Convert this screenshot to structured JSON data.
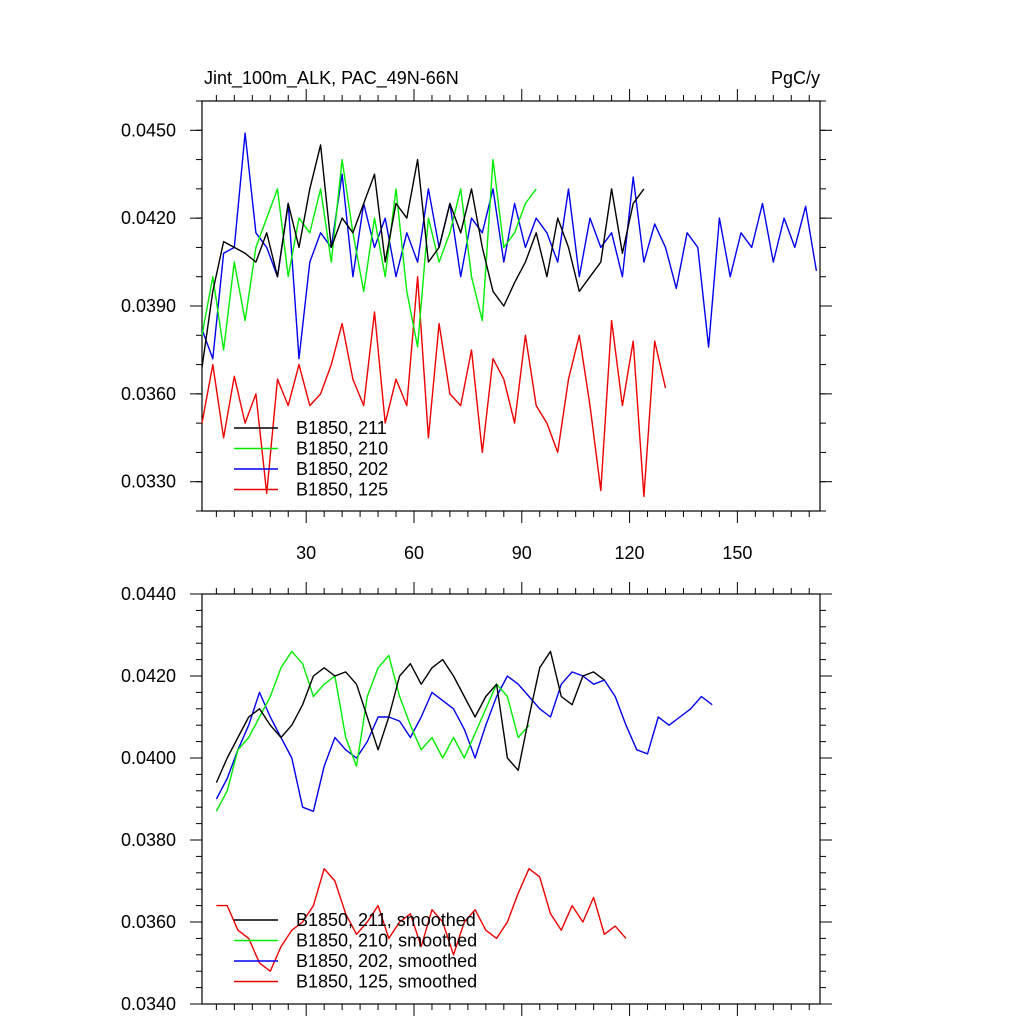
{
  "chart_data": [
    {
      "type": "line",
      "title_left": "Jint_100m_ALK, PAC_49N-66N",
      "title_right": "PgC/y",
      "xlim": [
        1,
        173
      ],
      "ylim": [
        0.032,
        0.046
      ],
      "xticks": [
        30,
        60,
        90,
        120,
        150
      ],
      "xticklabels": [
        "30",
        "60",
        "90",
        "120",
        "150"
      ],
      "yticks": [
        0.033,
        0.036,
        0.039,
        0.042,
        0.045
      ],
      "yticklabels": [
        "0.0330",
        "0.0360",
        "0.0390",
        "0.0420",
        "0.0450"
      ],
      "legend_position": "lower-left",
      "series": [
        {
          "name": "B1850, 211",
          "color": "#000000",
          "x_start": 1,
          "x_step": 3,
          "values": [
            0.0369,
            0.0395,
            0.0412,
            0.041,
            0.0408,
            0.0405,
            0.0415,
            0.04,
            0.0425,
            0.041,
            0.043,
            0.0445,
            0.041,
            0.042,
            0.0415,
            0.0425,
            0.0435,
            0.0405,
            0.0425,
            0.042,
            0.044,
            0.0405,
            0.041,
            0.0425,
            0.0415,
            0.043,
            0.041,
            0.0395,
            0.039,
            0.0398,
            0.0405,
            0.0415,
            0.04,
            0.042,
            0.041,
            0.0395,
            0.04,
            0.0405,
            0.043,
            0.0408,
            0.0425,
            0.043
          ]
        },
        {
          "name": "B1850, 210",
          "color": "#00ee00",
          "x_start": 1,
          "x_step": 3,
          "values": [
            0.038,
            0.04,
            0.0375,
            0.0405,
            0.0385,
            0.041,
            0.042,
            0.043,
            0.04,
            0.042,
            0.0415,
            0.043,
            0.0405,
            0.044,
            0.0415,
            0.0395,
            0.042,
            0.04,
            0.043,
            0.0395,
            0.0376,
            0.042,
            0.0405,
            0.0415,
            0.043,
            0.04,
            0.0385,
            0.044,
            0.041,
            0.0415,
            0.0425,
            0.043
          ]
        },
        {
          "name": "B1850, 202",
          "color": "#0000ee",
          "x_start": 1,
          "x_step": 3,
          "values": [
            0.0382,
            0.0372,
            0.0408,
            0.041,
            0.0449,
            0.0415,
            0.041,
            0.04,
            0.0425,
            0.0372,
            0.0405,
            0.0415,
            0.041,
            0.0435,
            0.04,
            0.0425,
            0.041,
            0.042,
            0.04,
            0.0415,
            0.0405,
            0.043,
            0.041,
            0.0425,
            0.04,
            0.042,
            0.0415,
            0.043,
            0.0405,
            0.0425,
            0.041,
            0.042,
            0.0415,
            0.0405,
            0.043,
            0.04,
            0.042,
            0.041,
            0.0415,
            0.04,
            0.0434,
            0.0405,
            0.0418,
            0.041,
            0.0396,
            0.0415,
            0.041,
            0.0376,
            0.042,
            0.04,
            0.0415,
            0.041,
            0.0425,
            0.0405,
            0.042,
            0.041,
            0.0424,
            0.0402
          ]
        },
        {
          "name": "B1850, 125",
          "color": "#ee0000",
          "x_start": 1,
          "x_step": 3,
          "values": [
            0.035,
            0.037,
            0.0345,
            0.0366,
            0.035,
            0.036,
            0.0326,
            0.0365,
            0.0356,
            0.037,
            0.0356,
            0.036,
            0.037,
            0.0384,
            0.0365,
            0.0356,
            0.0388,
            0.035,
            0.0365,
            0.0356,
            0.04,
            0.0345,
            0.0384,
            0.036,
            0.0356,
            0.0375,
            0.034,
            0.0372,
            0.0365,
            0.035,
            0.038,
            0.0356,
            0.035,
            0.034,
            0.0365,
            0.038,
            0.0356,
            0.0327,
            0.0385,
            0.0356,
            0.0378,
            0.0325,
            0.0378,
            0.0362
          ]
        }
      ],
      "legend": [
        "B1850, 211",
        "B1850, 210",
        "B1850, 202",
        "B1850, 125"
      ]
    },
    {
      "type": "line",
      "xlim": [
        1,
        173
      ],
      "ylim": [
        0.034,
        0.044
      ],
      "xticks": [
        30,
        60,
        90,
        120,
        150
      ],
      "yticks": [
        0.034,
        0.036,
        0.038,
        0.04,
        0.042,
        0.044
      ],
      "yticklabels": [
        "0.0340",
        "0.0360",
        "0.0380",
        "0.0400",
        "0.0420",
        "0.0440"
      ],
      "legend_position": "lower-left",
      "series": [
        {
          "name": "B1850, 211, smoothed",
          "color": "#000000",
          "x_start": 5,
          "x_step": 3,
          "values": [
            0.0394,
            0.04,
            0.0405,
            0.041,
            0.0412,
            0.0408,
            0.0405,
            0.0408,
            0.0413,
            0.042,
            0.0422,
            0.042,
            0.0421,
            0.0418,
            0.041,
            0.0402,
            0.041,
            0.042,
            0.0423,
            0.0418,
            0.0422,
            0.0424,
            0.042,
            0.0415,
            0.041,
            0.0415,
            0.0418,
            0.04,
            0.0397,
            0.041,
            0.0422,
            0.0426,
            0.0415,
            0.0413,
            0.042,
            0.0421,
            0.0419
          ]
        },
        {
          "name": "B1850, 210, smoothed",
          "color": "#00ee00",
          "x_start": 5,
          "x_step": 3,
          "values": [
            0.0387,
            0.0392,
            0.0402,
            0.0405,
            0.041,
            0.0415,
            0.0422,
            0.0426,
            0.0423,
            0.0415,
            0.0418,
            0.042,
            0.0405,
            0.0398,
            0.0415,
            0.0422,
            0.0425,
            0.0415,
            0.0408,
            0.0402,
            0.0405,
            0.04,
            0.0405,
            0.04,
            0.0406,
            0.0412,
            0.0418,
            0.0415,
            0.0405,
            0.0408
          ]
        },
        {
          "name": "B1850, 202, smoothed",
          "color": "#0000ee",
          "x_start": 5,
          "x_step": 3,
          "values": [
            0.039,
            0.0395,
            0.0402,
            0.0408,
            0.0416,
            0.041,
            0.0405,
            0.04,
            0.0388,
            0.0387,
            0.0398,
            0.0405,
            0.0402,
            0.04,
            0.0404,
            0.041,
            0.041,
            0.0409,
            0.0405,
            0.041,
            0.0416,
            0.0414,
            0.0412,
            0.0407,
            0.04,
            0.0408,
            0.0415,
            0.042,
            0.0418,
            0.0415,
            0.0412,
            0.041,
            0.0418,
            0.0421,
            0.042,
            0.0418,
            0.0419,
            0.0415,
            0.0408,
            0.0402,
            0.0401,
            0.041,
            0.0408,
            0.041,
            0.0412,
            0.0415,
            0.0413
          ]
        },
        {
          "name": "B1850, 125, smoothed",
          "color": "#ee0000",
          "x_start": 5,
          "x_step": 3,
          "values": [
            0.0364,
            0.0364,
            0.0358,
            0.0356,
            0.035,
            0.0348,
            0.0354,
            0.0358,
            0.036,
            0.0364,
            0.0373,
            0.037,
            0.0362,
            0.0357,
            0.036,
            0.0364,
            0.0356,
            0.036,
            0.0362,
            0.0354,
            0.0363,
            0.036,
            0.0352,
            0.036,
            0.0363,
            0.0358,
            0.0356,
            0.036,
            0.0367,
            0.0373,
            0.0371,
            0.0362,
            0.0358,
            0.0364,
            0.036,
            0.0366,
            0.0357,
            0.0359,
            0.0356
          ]
        }
      ],
      "legend": [
        "B1850, 211, smoothed",
        "B1850, 210, smoothed",
        "B1850, 202, smoothed",
        "B1850, 125, smoothed"
      ]
    }
  ]
}
